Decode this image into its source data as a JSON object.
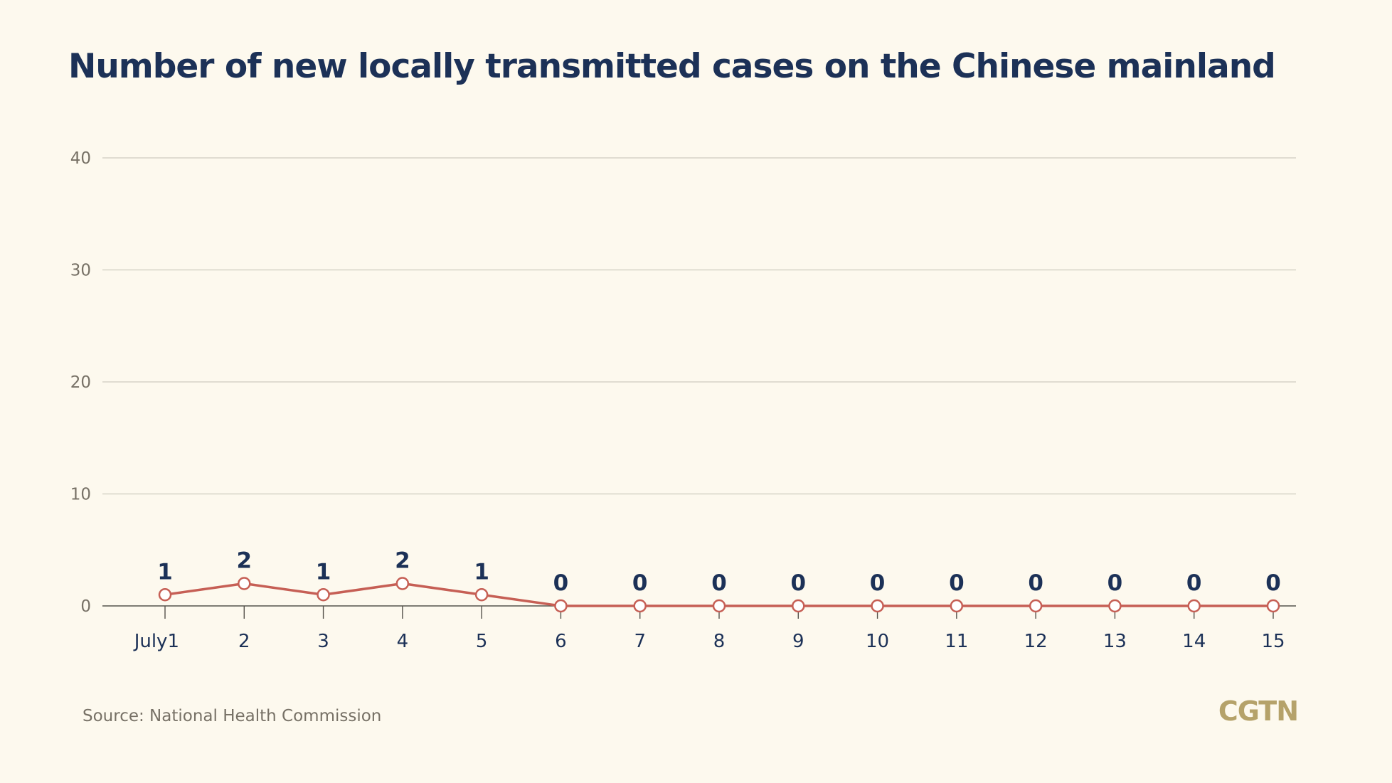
{
  "chart_data": {
    "type": "line",
    "title": "Number of new locally transmitted cases on the Chinese mainland",
    "x": [
      "July1",
      "2",
      "3",
      "4",
      "5",
      "6",
      "7",
      "8",
      "9",
      "10",
      "11",
      "12",
      "13",
      "14",
      "15"
    ],
    "series": [
      {
        "values": [
          1,
          2,
          1,
          2,
          1,
          0,
          0,
          0,
          0,
          0,
          0,
          0,
          0,
          0,
          0
        ]
      }
    ],
    "yticks": [
      "0",
      "10",
      "20",
      "30",
      "40"
    ],
    "ylim": [
      0,
      40
    ],
    "grid": true,
    "line_color": "#c65f55"
  },
  "source": "Source: National Health Commission",
  "brand": "CGTN"
}
